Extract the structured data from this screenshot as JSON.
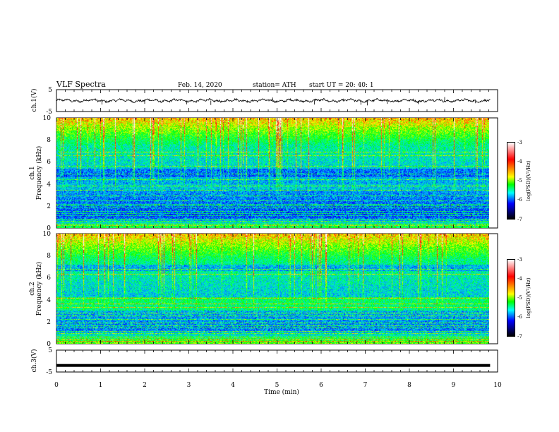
{
  "header": {
    "title": "VLF  Spectra",
    "date": "Feb. 14, 2020",
    "station": "station= ATH",
    "start": "start  UT  =    20: 40: 1"
  },
  "chart_data": [
    {
      "type": "line",
      "panel": "ch1-waveform",
      "ylabel": "ch.1(V)",
      "ylim": [
        -5,
        5
      ],
      "y_ticks": [
        "5",
        "-5"
      ],
      "xlim": [
        0,
        10
      ],
      "data_end_min": 9.83,
      "baseline": 0.0,
      "spikes": [
        {
          "x": 1.03,
          "y": -1.8
        },
        {
          "x": 2.0,
          "y": -1.5
        },
        {
          "x": 2.95,
          "y": -1.7
        },
        {
          "x": 3.5,
          "y": -2.0
        },
        {
          "x": 4.9,
          "y": 1.4
        },
        {
          "x": 5.85,
          "y": -1.8
        },
        {
          "x": 6.9,
          "y": -1.9
        },
        {
          "x": 7.05,
          "y": -2.2
        },
        {
          "x": 7.5,
          "y": -1.5
        },
        {
          "x": 8.2,
          "y": -1.6
        },
        {
          "x": 8.8,
          "y": 1.6
        },
        {
          "x": 9.5,
          "y": -1.2
        }
      ]
    },
    {
      "type": "heatmap",
      "panel": "ch1-spectrogram",
      "ylabel": "ch.1",
      "ylabel2": "Frequency  (kHz)",
      "ylim": [
        0,
        10
      ],
      "y_ticks": [
        "0",
        "2",
        "4",
        "6",
        "8",
        "10"
      ],
      "xlim": [
        0,
        10
      ],
      "data_end_min": 9.83,
      "colorbar": {
        "label": "log(PSD)(V²/Hz)",
        "range": [
          -7,
          -3
        ],
        "ticks": [
          "-3",
          "-4",
          "-5",
          "-6",
          "-7"
        ]
      }
    },
    {
      "type": "heatmap",
      "panel": "ch2-spectrogram",
      "ylabel": "ch.2",
      "ylabel2": "Frequency  (kHz)",
      "ylim": [
        0,
        10
      ],
      "y_ticks": [
        "0",
        "2",
        "4",
        "6",
        "8",
        "10"
      ],
      "xlim": [
        0,
        10
      ],
      "data_end_min": 9.83,
      "colorbar": {
        "label": "log(PSD)(V²/Hz)",
        "range": [
          -7,
          -3
        ],
        "ticks": [
          "-3",
          "-4",
          "-5",
          "-6",
          "-7"
        ]
      }
    },
    {
      "type": "line",
      "panel": "ch3-waveform",
      "ylabel": "ch.3(V)",
      "ylim": [
        -5,
        5
      ],
      "y_ticks": [
        "5",
        "-5"
      ],
      "xlim": [
        0,
        10
      ],
      "data_end_min": 9.83,
      "baseline": -2.0,
      "xlabel": "Time  (min)",
      "x_ticks": [
        "0",
        "1",
        "2",
        "3",
        "4",
        "5",
        "6",
        "7",
        "8",
        "9",
        "10"
      ]
    }
  ]
}
